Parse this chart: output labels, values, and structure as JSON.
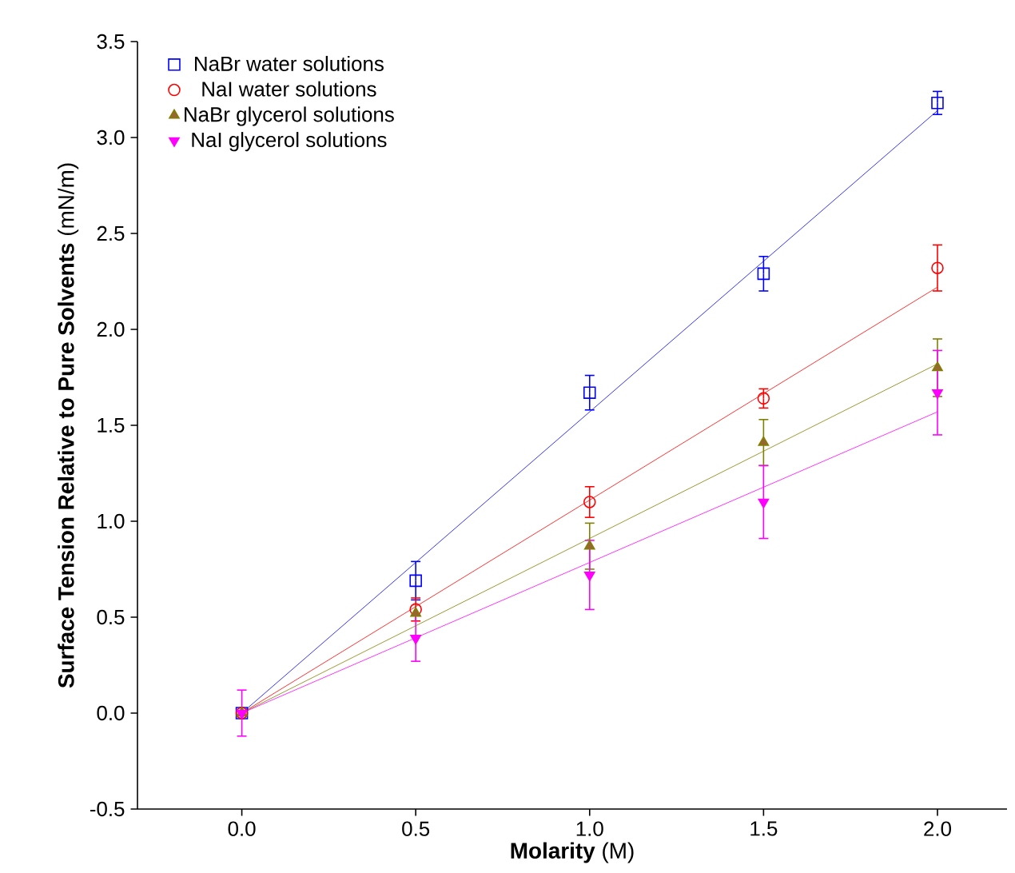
{
  "chart_data": {
    "type": "scatter",
    "xlabel": "**Molarity** (M)",
    "ylabel": "**Surface Tension Relative to Pure Solvents** (mN/m)",
    "xlim": [
      -0.3,
      2.2
    ],
    "ylim": [
      -0.5,
      3.5
    ],
    "xticks": [
      {
        "value": 0,
        "label": "0.0"
      },
      0.5,
      {
        "value": 1,
        "label": "1.0"
      },
      1.5,
      {
        "value": 2,
        "label": "2.0"
      }
    ],
    "yticks": [
      -0.5,
      {
        "value": 0,
        "label": "0.0"
      },
      0.5,
      {
        "value": 1,
        "label": "1.0"
      },
      1.5,
      {
        "value": 2,
        "label": "2.0"
      },
      2.5,
      {
        "value": 3,
        "label": "3.0"
      },
      3.5
    ],
    "legend": "top left",
    "series": [
      {
        "name": "NaBr water solutions",
        "marker": "square",
        "color": "#0000ff",
        "x": [
          0,
          0.5,
          1,
          1.5,
          2
        ],
        "values": [
          0,
          0.69,
          1.67,
          2.29,
          3.18
        ],
        "errors": [
          null,
          0.1,
          0.09,
          0.09,
          0.06
        ]
      },
      {
        "name": "NaI water solutions",
        "marker": "circle",
        "color": "#ff0000",
        "x": [
          0,
          0.5,
          1,
          1.5,
          2
        ],
        "values": [
          0,
          0.54,
          1.1,
          1.64,
          2.32
        ],
        "errors": [
          null,
          0.06,
          0.08,
          0.05,
          0.12
        ]
      },
      {
        "name": "NaBr glycerol solutions",
        "marker": "triangle",
        "color": "#808000",
        "x": [
          0,
          0.5,
          1,
          1.5,
          2
        ],
        "values": [
          0,
          0.52,
          0.87,
          1.41,
          1.8
        ],
        "errors": [
          null,
          null,
          0.12,
          0.12,
          0.15
        ]
      },
      {
        "name": "NaI glycerol solutions",
        "marker": "triangle-down",
        "color": "#ff00ff",
        "x": [
          0,
          0.5,
          1,
          1.5,
          2
        ],
        "values": [
          0,
          0.39,
          0.72,
          1.1,
          1.67
        ],
        "errors": [
          0.12,
          0.12,
          0.18,
          0.19,
          0.22
        ]
      },
      {
        "type": "line",
        "line_style": "solid",
        "color": "#0000ff",
        "x": [
          0,
          2
        ],
        "values": [
          0,
          3.14
        ]
      },
      {
        "type": "line",
        "line_style": "solid",
        "color": "#ff0000",
        "x": [
          0,
          2
        ],
        "values": [
          0,
          2.22
        ]
      },
      {
        "type": "line",
        "line_style": "solid",
        "color": "#808000",
        "x": [
          0,
          2
        ],
        "values": [
          0,
          1.82
        ]
      },
      {
        "type": "line",
        "line_style": "solid",
        "color": "#ff00ff",
        "x": [
          0,
          2
        ],
        "values": [
          0,
          1.57
        ]
      }
    ]
  }
}
